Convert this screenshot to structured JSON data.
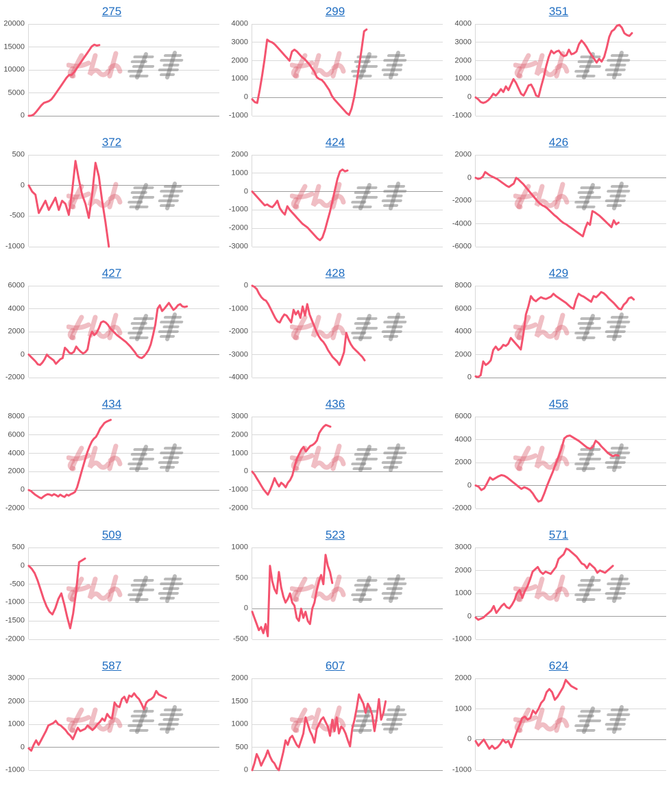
{
  "watermark": {
    "text": "みんレポ",
    "pink_color": "#E18A96",
    "gray_color": "#9B9B9B"
  },
  "styles": {
    "line_color": "#F4536F",
    "link_color": "#1F6DC1",
    "grid_color": "#D9D9D9",
    "zero_line_color": "#9E9E9E",
    "tick_label_color": "#4D4D4D"
  },
  "chart_data": [
    {
      "type": "line",
      "title": "275",
      "ylim": [
        0,
        20000
      ],
      "yticks": [
        20000,
        15000,
        10000,
        5000,
        0
      ],
      "x_end_fraction": 0.37,
      "grid": true,
      "legend": false,
      "values": [
        0,
        50,
        300,
        900,
        1600,
        2300,
        2800,
        3000,
        3200,
        3600,
        4300,
        5100,
        5900,
        6700,
        7500,
        8300,
        8900,
        8900,
        9500,
        10300,
        11100,
        11900,
        12700,
        13500,
        14300,
        15100,
        15500,
        15300,
        15400
      ]
    },
    {
      "type": "line",
      "title": "299",
      "ylim": [
        -1000,
        4000
      ],
      "yticks": [
        4000,
        3000,
        2000,
        1000,
        0,
        -1000
      ],
      "x_end_fraction": 0.6,
      "grid": true,
      "legend": false,
      "values": [
        -100,
        -250,
        -300,
        400,
        1200,
        2100,
        3150,
        3050,
        3000,
        2900,
        2750,
        2600,
        2450,
        2300,
        2150,
        2000,
        2500,
        2600,
        2500,
        2350,
        2200,
        2100,
        1950,
        1800,
        1600,
        1400,
        1100,
        1000,
        950,
        800,
        600,
        400,
        100,
        -100,
        -250,
        -400,
        -550,
        -700,
        -850,
        -950,
        -600,
        0,
        800,
        1700,
        2600,
        3600,
        3700
      ]
    },
    {
      "type": "line",
      "title": "351",
      "ylim": [
        -1000,
        4000
      ],
      "yticks": [
        4000,
        3000,
        2000,
        1000,
        0,
        -1000
      ],
      "x_end_fraction": 0.82,
      "grid": true,
      "legend": false,
      "values": [
        0,
        -100,
        -250,
        -300,
        -250,
        -150,
        0,
        200,
        100,
        250,
        450,
        300,
        600,
        400,
        700,
        1000,
        800,
        500,
        200,
        100,
        350,
        650,
        700,
        450,
        100,
        50,
        600,
        1100,
        1700,
        2200,
        2550,
        2400,
        2500,
        2550,
        2350,
        2250,
        2300,
        2600,
        2350,
        2400,
        2500,
        2900,
        3100,
        2950,
        2750,
        2500,
        2300,
        2100,
        1900,
        2100,
        1950,
        2200,
        2700,
        3300,
        3600,
        3700,
        3900,
        3950,
        3800,
        3500,
        3400,
        3350,
        3500
      ]
    },
    {
      "type": "line",
      "title": "372",
      "ylim": [
        -1000,
        500
      ],
      "yticks": [
        500,
        0,
        -500,
        -1000
      ],
      "x_end_fraction": 0.42,
      "grid": true,
      "legend": false,
      "values": [
        0,
        -100,
        -150,
        -450,
        -350,
        -250,
        -400,
        -300,
        -200,
        -400,
        -250,
        -300,
        -480,
        -100,
        400,
        100,
        -150,
        -300,
        -530,
        -150,
        370,
        150,
        -250,
        -600,
        -1000
      ]
    },
    {
      "type": "line",
      "title": "424",
      "ylim": [
        -3000,
        2000
      ],
      "yticks": [
        2000,
        1000,
        0,
        -1000,
        -2000,
        -3000
      ],
      "x_end_fraction": 0.5,
      "grid": true,
      "legend": false,
      "values": [
        0,
        -150,
        -300,
        -450,
        -600,
        -750,
        -700,
        -800,
        -850,
        -700,
        -500,
        -900,
        -1100,
        -1250,
        -800,
        -1000,
        -1150,
        -1300,
        -1450,
        -1600,
        -1750,
        -1850,
        -1950,
        -2100,
        -2250,
        -2400,
        -2550,
        -2650,
        -2500,
        -2100,
        -1600,
        -1100,
        -500,
        100,
        700,
        1100,
        1200,
        1100,
        1150
      ]
    },
    {
      "type": "line",
      "title": "426",
      "ylim": [
        -6000,
        2000
      ],
      "yticks": [
        2000,
        0,
        -2000,
        -4000,
        -6000
      ],
      "x_end_fraction": 0.75,
      "grid": true,
      "legend": false,
      "values": [
        0,
        -100,
        -50,
        100,
        500,
        350,
        200,
        100,
        0,
        -100,
        -250,
        -400,
        -550,
        -700,
        -800,
        -650,
        -500,
        0,
        -150,
        -350,
        -550,
        -800,
        -1050,
        -1300,
        -1550,
        -1800,
        -2050,
        -2250,
        -2400,
        -2500,
        -2650,
        -2850,
        -3050,
        -3250,
        -3400,
        -3600,
        -3800,
        -3950,
        -4050,
        -4200,
        -4350,
        -4500,
        -4650,
        -4800,
        -4950,
        -5100,
        -4400,
        -3900,
        -4100,
        -2900,
        -3000,
        -3150,
        -3300,
        -3500,
        -3700,
        -3900,
        -4100,
        -4300,
        -3700,
        -4050,
        -3900
      ]
    },
    {
      "type": "line",
      "title": "427",
      "ylim": [
        -2000,
        6000
      ],
      "yticks": [
        6000,
        4000,
        2000,
        0,
        -2000
      ],
      "x_end_fraction": 0.83,
      "grid": true,
      "legend": false,
      "values": [
        0,
        -200,
        -400,
        -600,
        -850,
        -900,
        -700,
        -400,
        0,
        -200,
        -350,
        -500,
        -800,
        -600,
        -400,
        -300,
        600,
        400,
        150,
        100,
        250,
        700,
        450,
        250,
        100,
        200,
        450,
        1500,
        2000,
        1700,
        1900,
        2300,
        2800,
        2900,
        2800,
        2600,
        2300,
        2100,
        1900,
        1700,
        1550,
        1400,
        1250,
        1100,
        900,
        700,
        450,
        200,
        -100,
        -250,
        -300,
        -150,
        100,
        400,
        900,
        1700,
        2600,
        4000,
        4300,
        3800,
        4000,
        4250,
        4500,
        4200,
        3900,
        4050,
        4300,
        4400,
        4200,
        4150,
        4200
      ]
    },
    {
      "type": "line",
      "title": "428",
      "ylim": [
        -4000,
        0
      ],
      "yticks": [
        0,
        -1000,
        -2000,
        -3000,
        -4000
      ],
      "x_end_fraction": 0.59,
      "grid": true,
      "legend": false,
      "values": [
        0,
        -50,
        -150,
        -350,
        -500,
        -600,
        -650,
        -800,
        -1000,
        -1200,
        -1400,
        -1550,
        -1600,
        -1400,
        -1250,
        -1300,
        -1450,
        -1600,
        -1050,
        -1250,
        -1100,
        -1400,
        -900,
        -1300,
        -800,
        -1250,
        -1500,
        -1750,
        -2000,
        -2200,
        -2350,
        -2450,
        -2600,
        -2800,
        -2950,
        -3100,
        -3200,
        -3300,
        -3450,
        -3200,
        -2900,
        -2050,
        -2350,
        -2550,
        -2700,
        -2800,
        -2900,
        -3000,
        -3100,
        -3250
      ]
    },
    {
      "type": "line",
      "title": "429",
      "ylim": [
        0,
        8000
      ],
      "yticks": [
        8000,
        6000,
        4000,
        2000,
        0
      ],
      "x_end_fraction": 0.83,
      "grid": true,
      "legend": false,
      "values": [
        100,
        50,
        200,
        1400,
        1100,
        1250,
        1500,
        2400,
        2700,
        2400,
        2550,
        2850,
        2750,
        2950,
        3450,
        3200,
        2950,
        2700,
        2450,
        3800,
        5500,
        6200,
        7100,
        6800,
        6650,
        6850,
        7000,
        6900,
        6850,
        6950,
        7050,
        7300,
        7100,
        6950,
        6800,
        6650,
        6500,
        6300,
        6100,
        6000,
        6800,
        7300,
        7150,
        7050,
        6900,
        6750,
        6600,
        7100,
        7000,
        7200,
        7450,
        7350,
        7150,
        6900,
        6700,
        6500,
        6250,
        6000,
        5950,
        6350,
        6550,
        6900,
        7000,
        6800
      ]
    },
    {
      "type": "line",
      "title": "434",
      "ylim": [
        -2000,
        8000
      ],
      "yticks": [
        8000,
        6000,
        4000,
        2000,
        0,
        -2000
      ],
      "x_end_fraction": 0.43,
      "grid": true,
      "legend": false,
      "values": [
        0,
        -100,
        -300,
        -500,
        -650,
        -800,
        -900,
        -700,
        -550,
        -450,
        -500,
        -600,
        -450,
        -550,
        -700,
        -500,
        -650,
        -750,
        -500,
        -600,
        -450,
        -350,
        -200,
        300,
        1100,
        1900,
        2700,
        3500,
        4200,
        4800,
        5300,
        5600,
        5800,
        6200,
        6700,
        7000,
        7300,
        7450,
        7550,
        7650
      ]
    },
    {
      "type": "line",
      "title": "436",
      "ylim": [
        -2000,
        3000
      ],
      "yticks": [
        3000,
        2000,
        1000,
        0,
        -1000,
        -2000
      ],
      "x_end_fraction": 0.41,
      "grid": true,
      "legend": false,
      "values": [
        0,
        -150,
        -350,
        -550,
        -750,
        -950,
        -1100,
        -1250,
        -1000,
        -700,
        -350,
        -600,
        -800,
        -600,
        -700,
        -850,
        -600,
        -450,
        -200,
        300,
        700,
        950,
        1200,
        1350,
        1100,
        1250,
        1400,
        1450,
        1550,
        1700,
        2100,
        2300,
        2450,
        2550,
        2500,
        2450
      ]
    },
    {
      "type": "line",
      "title": "456",
      "ylim": [
        -2000,
        6000
      ],
      "yticks": [
        6000,
        4000,
        2000,
        0,
        -2000
      ],
      "x_end_fraction": 0.75,
      "grid": true,
      "legend": false,
      "values": [
        0,
        -100,
        -400,
        -250,
        200,
        700,
        500,
        650,
        800,
        900,
        850,
        700,
        500,
        300,
        100,
        -100,
        -300,
        -150,
        -250,
        -400,
        -700,
        -1100,
        -1400,
        -1300,
        -700,
        0,
        600,
        1200,
        1900,
        2500,
        3200,
        4100,
        4300,
        4350,
        4200,
        4050,
        3900,
        3700,
        3500,
        3300,
        3200,
        3350,
        3900,
        3700,
        3400,
        3150,
        2900,
        2700,
        2550,
        2650,
        2600
      ]
    },
    {
      "type": "line",
      "title": "509",
      "ylim": [
        -2000,
        500
      ],
      "yticks": [
        500,
        0,
        -500,
        -1000,
        -1500,
        -2000
      ],
      "x_end_fraction": 0.295,
      "grid": true,
      "legend": false,
      "values": [
        0,
        -80,
        -200,
        -400,
        -650,
        -900,
        -1100,
        -1250,
        -1320,
        -1150,
        -900,
        -750,
        -1050,
        -1400,
        -1700,
        -1300,
        -700,
        100,
        150,
        200
      ]
    },
    {
      "type": "line",
      "title": "523",
      "ylim": [
        -500,
        1000
      ],
      "yticks": [
        1000,
        500,
        0,
        -500
      ],
      "x_end_fraction": 0.42,
      "grid": true,
      "legend": false,
      "values": [
        -50,
        -150,
        -250,
        -350,
        -300,
        -400,
        -250,
        -450,
        700,
        450,
        320,
        250,
        600,
        350,
        200,
        100,
        160,
        250,
        100,
        50,
        -150,
        -200,
        0,
        -150,
        -50,
        -200,
        -250,
        0,
        100,
        300,
        450,
        550,
        400,
        880,
        700,
        600,
        420
      ]
    },
    {
      "type": "line",
      "title": "571",
      "ylim": [
        -1000,
        3000
      ],
      "yticks": [
        3000,
        2000,
        1000,
        0,
        -1000
      ],
      "x_end_fraction": 0.72,
      "grid": true,
      "legend": false,
      "values": [
        -50,
        -150,
        -100,
        -50,
        50,
        150,
        250,
        450,
        150,
        300,
        450,
        550,
        400,
        350,
        500,
        700,
        1000,
        1150,
        800,
        1100,
        1300,
        1600,
        1950,
        2050,
        2150,
        1950,
        1850,
        1950,
        1900,
        1850,
        2000,
        2150,
        2500,
        2600,
        2700,
        2950,
        2900,
        2800,
        2700,
        2600,
        2450,
        2300,
        2250,
        2100,
        2300,
        2200,
        2100,
        1900,
        2000,
        1950,
        1900,
        2000,
        2100,
        2200
      ]
    },
    {
      "type": "line",
      "title": "587",
      "ylim": [
        -1000,
        3000
      ],
      "yticks": [
        3000,
        2000,
        1000,
        0,
        -1000
      ],
      "x_end_fraction": 0.72,
      "grid": true,
      "legend": false,
      "values": [
        -50,
        -150,
        100,
        300,
        100,
        300,
        500,
        700,
        950,
        1000,
        1050,
        1150,
        1000,
        950,
        850,
        750,
        600,
        500,
        350,
        600,
        850,
        700,
        750,
        800,
        950,
        850,
        750,
        850,
        1000,
        1100,
        1250,
        1150,
        1450,
        1300,
        1250,
        1950,
        1800,
        1750,
        2100,
        2200,
        1950,
        2250,
        2200,
        2350,
        2200,
        2100,
        1900,
        1650,
        1950,
        2050,
        2100,
        2200,
        2450,
        2300,
        2250,
        2200,
        2150
      ]
    },
    {
      "type": "line",
      "title": "607",
      "ylim": [
        0,
        2000
      ],
      "yticks": [
        2000,
        1500,
        1000,
        500,
        0
      ],
      "x_end_fraction": 0.7,
      "grid": true,
      "legend": false,
      "values": [
        0,
        150,
        350,
        250,
        100,
        200,
        300,
        430,
        300,
        200,
        150,
        50,
        0,
        200,
        400,
        650,
        550,
        700,
        750,
        650,
        550,
        500,
        650,
        800,
        1150,
        1000,
        850,
        750,
        600,
        900,
        1000,
        1100,
        1150,
        1050,
        950,
        750,
        1100,
        850,
        1150,
        800,
        950,
        900,
        800,
        650,
        520,
        900,
        1100,
        1350,
        1650,
        1550,
        1450,
        1250,
        1450,
        1350,
        1200,
        850,
        1150,
        1550,
        1100,
        1250,
        1500
      ]
    },
    {
      "type": "line",
      "title": "624",
      "ylim": [
        -1000,
        2000
      ],
      "yticks": [
        2000,
        1000,
        0,
        -1000
      ],
      "x_end_fraction": 0.53,
      "grid": true,
      "legend": false,
      "values": [
        -50,
        -200,
        -100,
        0,
        -150,
        -300,
        -200,
        -300,
        -250,
        -150,
        0,
        -100,
        -50,
        -250,
        0,
        250,
        450,
        700,
        750,
        650,
        700,
        950,
        850,
        1000,
        1200,
        1300,
        1550,
        1650,
        1550,
        1300,
        1400,
        1550,
        1700,
        1950,
        1850,
        1750,
        1700,
        1650
      ]
    }
  ]
}
